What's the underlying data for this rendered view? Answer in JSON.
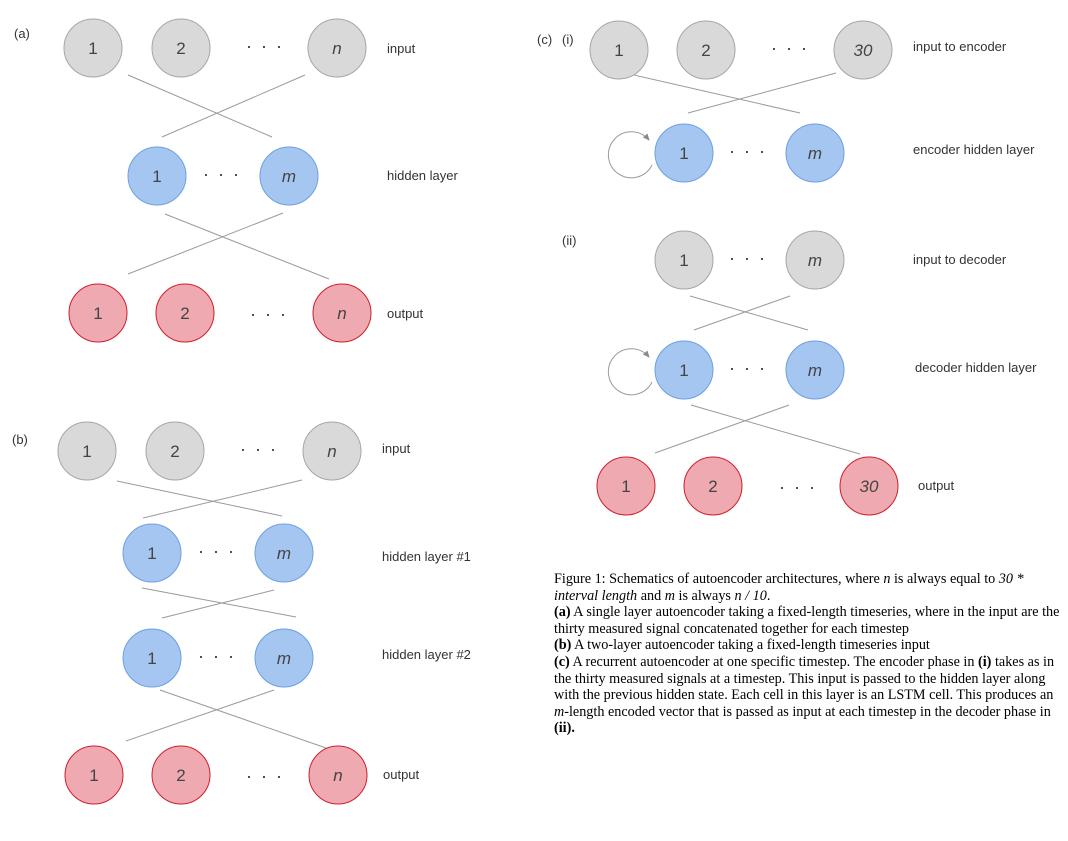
{
  "panel_labels": {
    "a": "(a)",
    "b": "(b)",
    "c": "(c)",
    "c_i": "(i)",
    "c_ii": "(ii)"
  },
  "node_text": {
    "one": "1",
    "two": "2",
    "n": "n",
    "m": "m",
    "thirty": "30",
    "ellipsis": "· · ·"
  },
  "panel_a": {
    "input": "input",
    "hidden": "hidden layer",
    "output": "output"
  },
  "panel_b": {
    "input": "input",
    "hidden1": "hidden layer #1",
    "hidden2": "hidden layer #2",
    "output": "output"
  },
  "panel_c": {
    "input_encoder": "input to encoder",
    "encoder_hidden": "encoder hidden layer",
    "input_decoder": "input to decoder",
    "decoder_hidden": "decoder hidden layer",
    "output": "output"
  },
  "caption": {
    "line1_prefix": "Figure 1: Schematics of autoencoder architectures, where ",
    "n_var": "n",
    "line1_mid": " is always equal to ",
    "expr": "30 * interval length",
    "and_text": " and ",
    "m_var": "m",
    "is_always": " is always ",
    "m_expr": "n / 10",
    "period": ".",
    "a_tag": "(a)",
    "a_text": " A single layer autoencoder taking a fixed-length timeseries, where in the input are the thirty measured signal concatenated together for each timestep",
    "b_tag": "(b)",
    "b_text": " A two-layer autoencoder taking a fixed-length timeseries input",
    "c_tag": "(c)",
    "c_text1": " A recurrent autoencoder at one specific timestep. The encoder phase in ",
    "c_i_tag": "(i)",
    "c_text2": " takes as in the thirty measured signals at a timestep.  This input is passed to the hidden layer along with the previous hidden state.  Each cell in this layer is an LSTM cell. This produces an ",
    "c_m_var": "m",
    "c_text3": "-length encoded vector that is passed as input at each timestep in the decoder phase in ",
    "c_ii_tag": "(ii)."
  },
  "colors": {
    "input_fill": "#d9d9d9",
    "input_stroke": "#a6a6a6",
    "hidden_fill": "#a4c6f1",
    "hidden_stroke": "#6f9fe0",
    "output_fill": "#eeaab0",
    "output_stroke": "#d11d2c",
    "edge": "#9a9a9a"
  }
}
